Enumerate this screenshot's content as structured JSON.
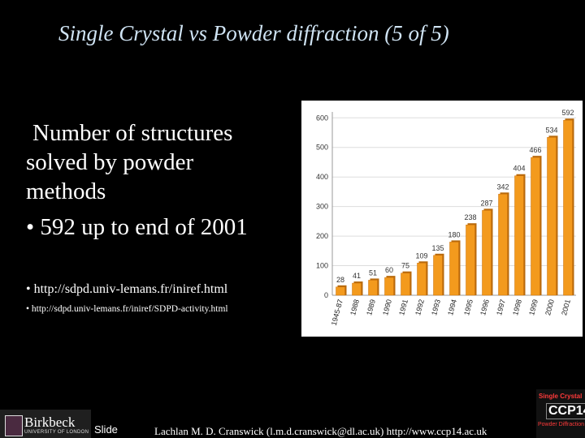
{
  "slide": {
    "title": "Single Crystal vs Powder diffraction (5 of 5)",
    "body_line1": "Number of structures",
    "body_line2": "solved by powder",
    "body_line3": "methods",
    "bullet_main": "• 592 up to end of 2001",
    "link1": "• http://sdpd.univ-lemans.fr/iniref.html",
    "link2": "• http://sdpd.univ-lemans.fr/iniref/SDPD-activity.html"
  },
  "footer": {
    "institution_name": "Birkbeck",
    "institution_sub": "UNIVERSITY OF LONDON",
    "slide_label": "Slide",
    "credit": "Lachlan M. D. Cranswick (l.m.d.cranswick@dl.ac.uk) http://www.ccp14.ac.uk",
    "ccp_top": "Single Crystal",
    "ccp_mid": "CCP14",
    "ccp_bottom": "Powder Diffraction"
  },
  "chart_data": {
    "type": "bar",
    "categories": [
      "1945-87",
      "1988",
      "1989",
      "1990",
      "1991",
      "1992",
      "1993",
      "1994",
      "1995",
      "1996",
      "1997",
      "1998",
      "1999",
      "2000",
      "2001"
    ],
    "values": [
      28,
      41,
      51,
      60,
      75,
      109,
      135,
      180,
      238,
      287,
      342,
      404,
      466,
      534,
      592
    ],
    "yticks": [
      0,
      100,
      200,
      300,
      400,
      500,
      600
    ],
    "ylim": [
      0,
      620
    ],
    "grid": true,
    "bar_color": "#f39a1d",
    "title": "",
    "xlabel": "",
    "ylabel": ""
  }
}
